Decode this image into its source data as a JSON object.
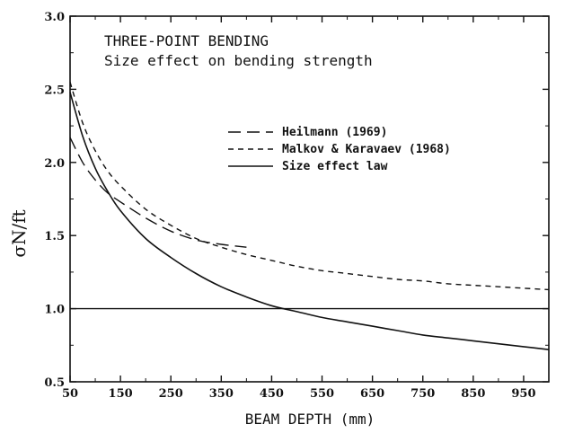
{
  "chart_data": {
    "type": "line",
    "title": "THREE-POINT BENDING",
    "subtitle": "Size effect on bending strength",
    "xlabel": "BEAM DEPTH (mm)",
    "ylabel": "σN/ft",
    "xlim": [
      50,
      1000
    ],
    "ylim": [
      0.5,
      3.0
    ],
    "x_ticks": [
      50,
      150,
      250,
      350,
      450,
      550,
      650,
      750,
      850,
      950
    ],
    "y_ticks": [
      0.5,
      1.0,
      1.5,
      2.0,
      2.5,
      3.0
    ],
    "y_tick_labels": [
      "0.5",
      "1.0",
      "1.5",
      "2.0",
      "2.5",
      "3.0"
    ],
    "grid": false,
    "legend_position": "right",
    "reference_line": {
      "y": 1.0
    },
    "series": [
      {
        "name": "Heilmann (1969)",
        "style": "long-dash",
        "x": [
          50,
          75,
          100,
          125,
          150,
          200,
          250,
          300,
          350,
          400
        ],
        "y": [
          2.17,
          2.0,
          1.88,
          1.79,
          1.73,
          1.62,
          1.53,
          1.47,
          1.44,
          1.42
        ]
      },
      {
        "name": "Malkov & Karavaev (1968)",
        "style": "short-dash",
        "x": [
          50,
          75,
          100,
          125,
          150,
          200,
          250,
          300,
          350,
          400,
          450,
          500,
          550,
          600,
          650,
          700,
          750,
          800,
          850,
          900,
          950,
          1000
        ],
        "y": [
          2.55,
          2.27,
          2.08,
          1.94,
          1.84,
          1.68,
          1.57,
          1.48,
          1.42,
          1.37,
          1.33,
          1.29,
          1.26,
          1.24,
          1.22,
          1.2,
          1.19,
          1.17,
          1.16,
          1.15,
          1.14,
          1.13
        ]
      },
      {
        "name": "Size effect law",
        "style": "solid",
        "x": [
          50,
          75,
          100,
          125,
          150,
          200,
          250,
          300,
          350,
          400,
          450,
          500,
          550,
          600,
          650,
          700,
          750,
          800,
          850,
          900,
          950,
          1000
        ],
        "y": [
          2.48,
          2.18,
          1.96,
          1.8,
          1.67,
          1.48,
          1.35,
          1.24,
          1.15,
          1.08,
          1.02,
          0.98,
          0.94,
          0.91,
          0.88,
          0.85,
          0.82,
          0.8,
          0.78,
          0.76,
          0.74,
          0.72
        ]
      }
    ]
  }
}
